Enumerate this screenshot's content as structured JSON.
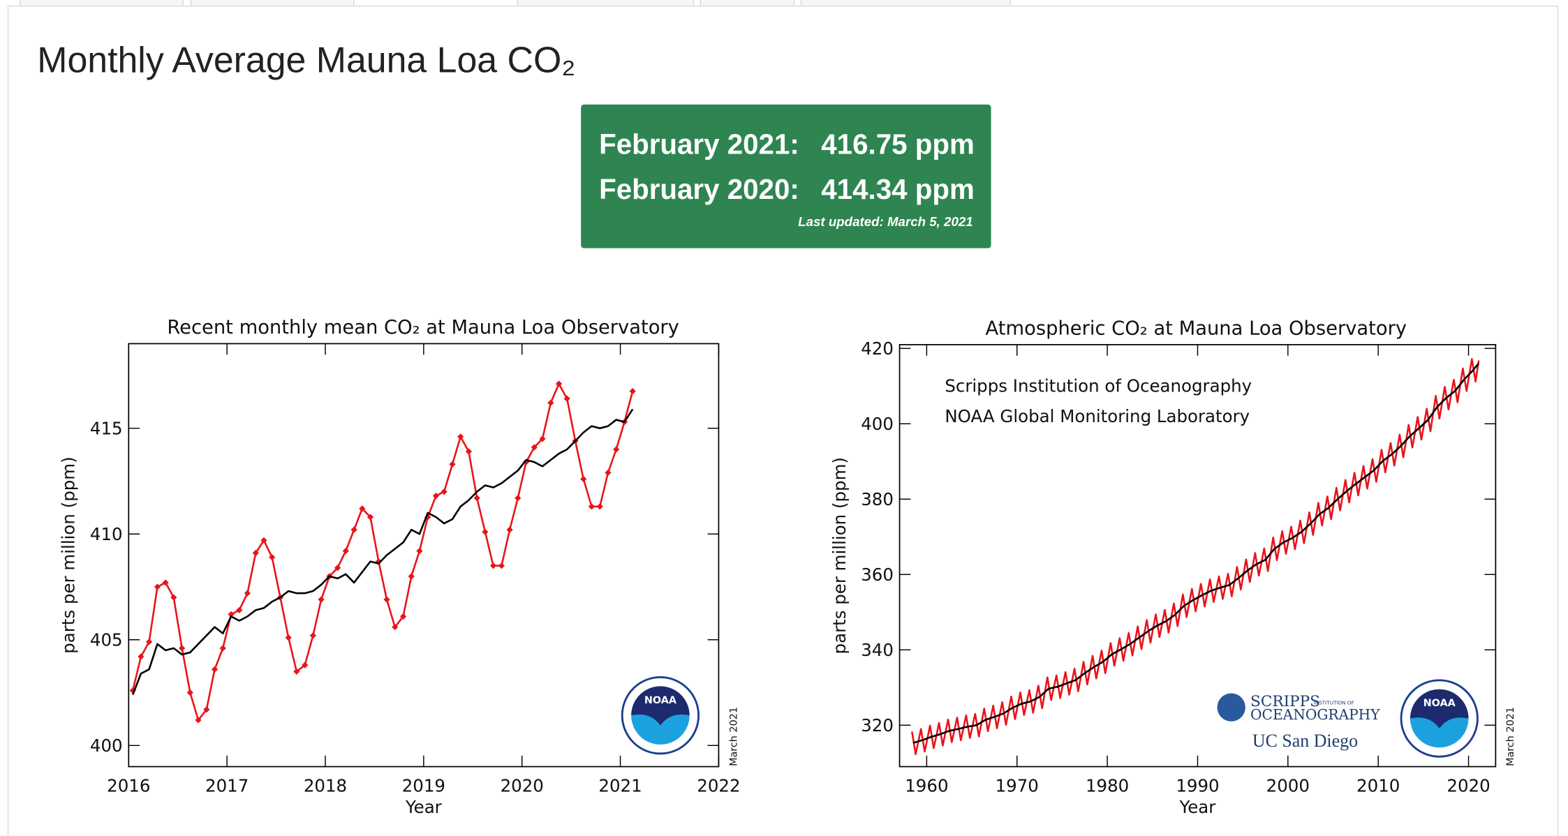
{
  "page": {
    "title": "Monthly Average Mauna Loa CO₂",
    "box": {
      "rows": [
        {
          "label": "February 2021:",
          "value": "416.75 ppm"
        },
        {
          "label": "February 2020:",
          "value": "414.34 ppm"
        }
      ],
      "updated": "Last updated: March 5, 2021"
    }
  },
  "chart_data": [
    {
      "type": "line",
      "title": "Recent monthly mean CO₂ at Mauna Loa Observatory",
      "xlabel": "Year",
      "ylabel": "parts per million (ppm)",
      "stamp": "March 2021",
      "logo_texts": [
        "NOAA"
      ],
      "xlim": [
        2016,
        2022
      ],
      "ylim": [
        399,
        419
      ],
      "xticks": [
        2016,
        2017,
        2018,
        2019,
        2020,
        2021,
        2022
      ],
      "yticks": [
        400,
        405,
        410,
        415
      ],
      "x": [
        2016.042,
        2016.125,
        2016.208,
        2016.292,
        2016.375,
        2016.458,
        2016.542,
        2016.625,
        2016.708,
        2016.792,
        2016.875,
        2016.958,
        2017.042,
        2017.125,
        2017.208,
        2017.292,
        2017.375,
        2017.458,
        2017.542,
        2017.625,
        2017.708,
        2017.792,
        2017.875,
        2017.958,
        2018.042,
        2018.125,
        2018.208,
        2018.292,
        2018.375,
        2018.458,
        2018.542,
        2018.625,
        2018.708,
        2018.792,
        2018.875,
        2018.958,
        2019.042,
        2019.125,
        2019.208,
        2019.292,
        2019.375,
        2019.458,
        2019.542,
        2019.625,
        2019.708,
        2019.792,
        2019.875,
        2019.958,
        2020.042,
        2020.125,
        2020.208,
        2020.292,
        2020.375,
        2020.458,
        2020.542,
        2020.625,
        2020.708,
        2020.792,
        2020.875,
        2020.958,
        2021.042,
        2021.125
      ],
      "series": [
        {
          "color": "#e8141b",
          "marker": "diamond",
          "values": [
            402.6,
            404.2,
            404.9,
            407.5,
            407.7,
            407.0,
            404.6,
            402.5,
            401.2,
            401.7,
            403.6,
            404.6,
            406.2,
            406.4,
            407.2,
            409.1,
            409.7,
            408.9,
            407.0,
            405.1,
            403.5,
            403.8,
            405.2,
            406.9,
            408.0,
            408.4,
            409.2,
            410.2,
            411.2,
            410.8,
            408.7,
            406.9,
            405.6,
            406.1,
            408.0,
            409.2,
            410.8,
            411.8,
            412.0,
            413.3,
            414.6,
            413.9,
            411.7,
            410.1,
            408.5,
            408.5,
            410.2,
            411.7,
            413.4,
            414.1,
            414.5,
            416.2,
            417.1,
            416.4,
            414.4,
            412.6,
            411.3,
            411.3,
            412.9,
            414.0,
            415.3,
            416.75
          ]
        },
        {
          "color": "#000000",
          "values": [
            402.4,
            403.4,
            403.6,
            404.8,
            404.5,
            404.6,
            404.3,
            404.4,
            404.8,
            405.2,
            405.6,
            405.3,
            406.1,
            405.9,
            406.1,
            406.4,
            406.5,
            406.8,
            407.0,
            407.3,
            407.2,
            407.2,
            407.3,
            407.6,
            408.0,
            407.9,
            408.1,
            407.7,
            408.2,
            408.7,
            408.6,
            409.0,
            409.3,
            409.6,
            410.2,
            410.0,
            411.0,
            410.8,
            410.5,
            410.7,
            411.3,
            411.6,
            412.0,
            412.3,
            412.2,
            412.4,
            412.7,
            413.0,
            413.5,
            413.4,
            413.2,
            413.5,
            413.8,
            414.0,
            414.4,
            414.8,
            415.1,
            415.0,
            415.1,
            415.4,
            415.3,
            415.9
          ]
        }
      ]
    },
    {
      "type": "line",
      "title": "Atmospheric CO₂ at Mauna Loa Observatory",
      "xlabel": "Year",
      "ylabel": "parts per million (ppm)",
      "stamp": "March 2021",
      "annotations": [
        "Scripps Institution of Oceanography",
        "NOAA Global Monitoring Laboratory"
      ],
      "logo_texts": [
        "NOAA",
        "SCRIPPS",
        "INSTITUTION OF",
        "OCEANOGRAPHY",
        "UC San Diego"
      ],
      "xlim": [
        1957,
        2023
      ],
      "ylim": [
        309,
        421
      ],
      "xticks": [
        1960,
        1970,
        1980,
        1990,
        2000,
        2010,
        2020
      ],
      "yticks": [
        320,
        340,
        360,
        380,
        400,
        420
      ],
      "series": [
        {
          "color": "#e8141b",
          "x": [
            1958.37,
            1958.78,
            1959.37,
            1959.78,
            1960.37,
            1960.78,
            1961.37,
            1961.78,
            1962.37,
            1962.78,
            1963.37,
            1963.78,
            1964.37,
            1964.78,
            1965.37,
            1965.78,
            1966.37,
            1966.78,
            1967.37,
            1967.78,
            1968.37,
            1968.78,
            1969.37,
            1969.78,
            1970.37,
            1970.78,
            1971.37,
            1971.78,
            1972.37,
            1972.78,
            1973.37,
            1973.78,
            1974.37,
            1974.78,
            1975.37,
            1975.78,
            1976.37,
            1976.78,
            1977.37,
            1977.78,
            1978.37,
            1978.78,
            1979.37,
            1979.78,
            1980.37,
            1980.78,
            1981.37,
            1981.78,
            1982.37,
            1982.78,
            1983.37,
            1983.78,
            1984.37,
            1984.78,
            1985.37,
            1985.78,
            1986.37,
            1986.78,
            1987.37,
            1987.78,
            1988.37,
            1988.78,
            1989.37,
            1989.78,
            1990.37,
            1990.78,
            1991.37,
            1991.78,
            1992.37,
            1992.78,
            1993.37,
            1993.78,
            1994.37,
            1994.78,
            1995.37,
            1995.78,
            1996.37,
            1996.78,
            1997.37,
            1997.78,
            1998.37,
            1998.78,
            1999.37,
            1999.78,
            2000.37,
            2000.78,
            2001.37,
            2001.78,
            2002.37,
            2002.78,
            2003.37,
            2003.78,
            2004.37,
            2004.78,
            2005.37,
            2005.78,
            2006.37,
            2006.78,
            2007.37,
            2007.78,
            2008.37,
            2008.78,
            2009.37,
            2009.78,
            2010.37,
            2010.78,
            2011.37,
            2011.78,
            2012.37,
            2012.78,
            2013.37,
            2013.78,
            2014.37,
            2014.78,
            2015.37,
            2015.78,
            2016.37,
            2016.78,
            2017.37,
            2017.78,
            2018.37,
            2018.78,
            2019.37,
            2019.78,
            2020.37,
            2020.78,
            2021.13
          ],
          "values": [
            318.3,
            312.3,
            319.0,
            313.0,
            319.9,
            313.9,
            320.6,
            314.6,
            321.5,
            315.5,
            322.0,
            316.0,
            322.6,
            316.6,
            323.0,
            317.0,
            324.4,
            318.4,
            325.2,
            319.2,
            326.1,
            320.1,
            327.6,
            321.6,
            328.7,
            322.7,
            329.3,
            323.3,
            330.5,
            324.5,
            332.7,
            326.7,
            333.2,
            327.2,
            334.1,
            328.1,
            335.0,
            329.0,
            336.8,
            330.8,
            338.4,
            332.4,
            339.8,
            333.8,
            341.8,
            335.8,
            343.1,
            337.1,
            344.5,
            338.5,
            346.2,
            340.2,
            347.9,
            341.9,
            349.4,
            343.4,
            350.6,
            344.6,
            352.3,
            346.3,
            354.7,
            348.7,
            356.2,
            350.2,
            357.5,
            351.5,
            358.7,
            352.7,
            359.5,
            353.5,
            360.2,
            354.2,
            362.0,
            356.0,
            364.0,
            358.0,
            365.7,
            359.7,
            366.9,
            360.9,
            369.8,
            363.8,
            371.5,
            365.5,
            372.7,
            366.7,
            374.3,
            368.3,
            376.5,
            370.5,
            379.0,
            373.0,
            380.7,
            374.7,
            383.0,
            377.0,
            385.1,
            379.1,
            387.0,
            381.0,
            388.8,
            382.8,
            390.6,
            384.6,
            393.1,
            387.1,
            394.9,
            388.9,
            397.1,
            391.1,
            399.7,
            393.7,
            401.8,
            395.8,
            404.0,
            398.0,
            407.4,
            401.4,
            409.8,
            403.8,
            411.7,
            405.7,
            414.7,
            408.7,
            417.2,
            411.2,
            416.8
          ]
        },
        {
          "color": "#000000",
          "x": [
            1958.5,
            1959.5,
            1960.5,
            1961.5,
            1962.5,
            1963.5,
            1964.5,
            1965.5,
            1966.5,
            1967.5,
            1968.5,
            1969.5,
            1970.5,
            1971.5,
            1972.5,
            1973.5,
            1974.5,
            1975.5,
            1976.5,
            1977.5,
            1978.5,
            1979.5,
            1980.5,
            1981.5,
            1982.5,
            1983.5,
            1984.5,
            1985.5,
            1986.5,
            1987.5,
            1988.5,
            1989.5,
            1990.5,
            1991.5,
            1992.5,
            1993.5,
            1994.5,
            1995.5,
            1996.5,
            1997.5,
            1998.5,
            1999.5,
            2000.5,
            2001.5,
            2002.5,
            2003.5,
            2004.5,
            2005.5,
            2006.5,
            2007.5,
            2008.5,
            2009.5,
            2010.5,
            2011.5,
            2012.5,
            2013.5,
            2014.5,
            2015.5,
            2016.5,
            2017.5,
            2018.5,
            2019.5,
            2020.5,
            2021.1
          ],
          "values": [
            315.3,
            316.0,
            316.9,
            317.6,
            318.5,
            319.0,
            319.6,
            320.0,
            321.4,
            322.2,
            323.1,
            324.6,
            325.7,
            326.3,
            327.5,
            329.7,
            330.2,
            331.1,
            332.0,
            333.8,
            335.4,
            336.8,
            338.8,
            340.1,
            341.5,
            343.2,
            344.9,
            346.4,
            347.6,
            349.3,
            351.7,
            353.2,
            354.5,
            355.7,
            356.5,
            357.2,
            359.0,
            361.0,
            362.7,
            363.9,
            366.8,
            368.5,
            369.7,
            371.3,
            373.5,
            376.0,
            377.7,
            380.0,
            382.1,
            384.0,
            385.8,
            387.6,
            390.1,
            391.9,
            394.1,
            396.7,
            398.8,
            401.0,
            404.4,
            406.8,
            408.7,
            411.7,
            414.2,
            416.0
          ]
        }
      ]
    }
  ]
}
